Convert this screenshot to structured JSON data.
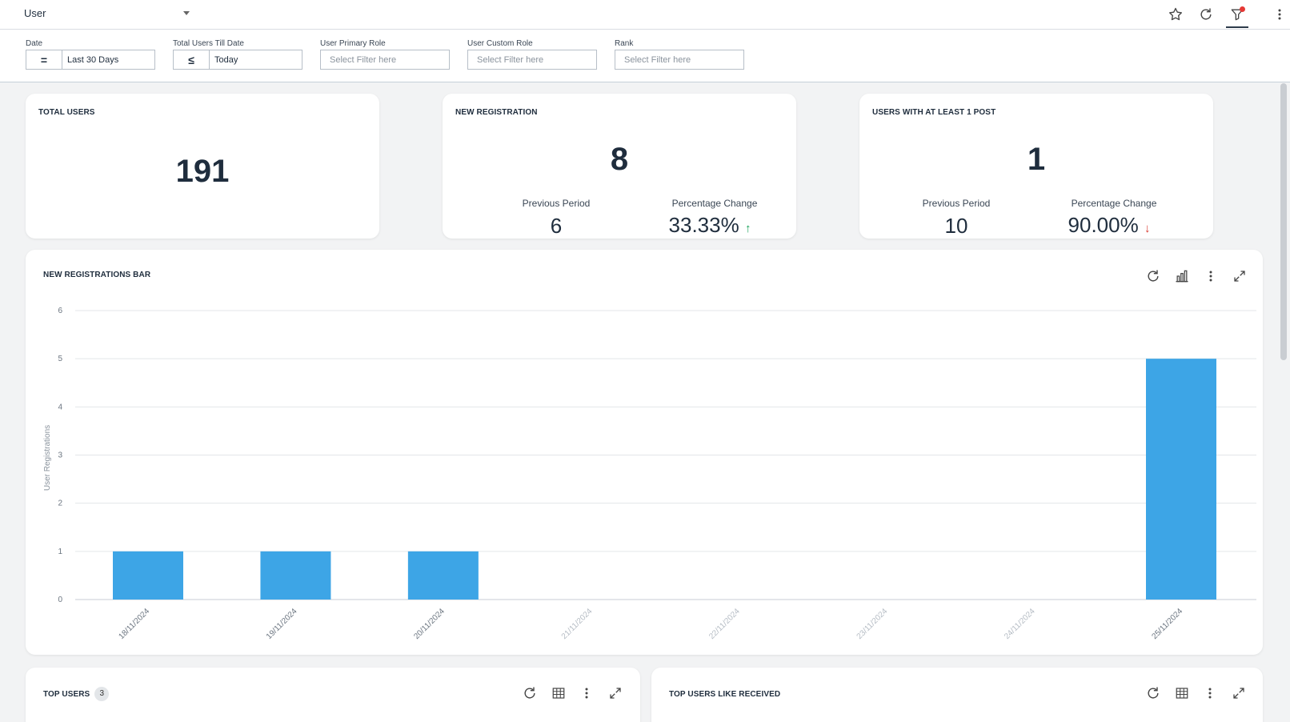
{
  "header": {
    "dashboard_name": "User",
    "icons": [
      "star-icon",
      "refresh-icon",
      "filter-icon",
      "more-vertical-icon"
    ]
  },
  "filters": [
    {
      "label": "Date",
      "operator": "=",
      "value": "Last 30 Days"
    },
    {
      "label": "Total Users Till Date",
      "operator": "≤",
      "value": "Today"
    },
    {
      "label": "User Primary Role",
      "placeholder": "Select Filter here"
    },
    {
      "label": "User Custom Role",
      "placeholder": "Select Filter here"
    },
    {
      "label": "Rank",
      "placeholder": "Select Filter here"
    }
  ],
  "kpis": {
    "total_users": {
      "title": "TOTAL USERS",
      "value": "191"
    },
    "new_registration": {
      "title": "NEW REGISTRATION",
      "value": "8",
      "prev_label": "Previous Period",
      "prev_value": "6",
      "change_label": "Percentage Change",
      "change_value": "33.33%",
      "change_dir": "up"
    },
    "users_with_post": {
      "title": "USERS WITH AT LEAST 1 POST",
      "value": "1",
      "prev_label": "Previous Period",
      "prev_value": "10",
      "change_label": "Percentage Change",
      "change_value": "90.00%",
      "change_dir": "down"
    }
  },
  "bar_card": {
    "title": "NEW REGISTRATIONS BAR",
    "icons": [
      "refresh-icon",
      "bar-chart-icon",
      "more-vertical-icon",
      "expand-icon"
    ]
  },
  "chart_data": {
    "type": "bar",
    "title": "NEW REGISTRATIONS BAR",
    "ylabel": "User Registrations",
    "xlabel": "",
    "categories": [
      "18/11/2024",
      "19/11/2024",
      "20/11/2024",
      "21/11/2024",
      "22/11/2024",
      "23/11/2024",
      "24/11/2024",
      "25/11/2024"
    ],
    "values": [
      1,
      1,
      1,
      0,
      0,
      0,
      0,
      5
    ],
    "ylim": [
      0,
      6
    ],
    "yticks": [
      0,
      1,
      2,
      3,
      4,
      5,
      6
    ],
    "grid": true,
    "bar_color": "#3da5e6"
  },
  "bottom_cards": {
    "top_users": {
      "title": "TOP USERS",
      "badge": "3",
      "icons": [
        "refresh-icon",
        "table-icon",
        "more-vertical-icon",
        "expand-icon"
      ]
    },
    "top_users_like": {
      "title": "TOP USERS LIKE RECEIVED",
      "icons": [
        "refresh-icon",
        "table-icon",
        "more-vertical-icon",
        "expand-icon"
      ]
    }
  },
  "colors": {
    "accent": "#3da5e6",
    "up": "#1aa25a",
    "down": "#d93a30"
  }
}
